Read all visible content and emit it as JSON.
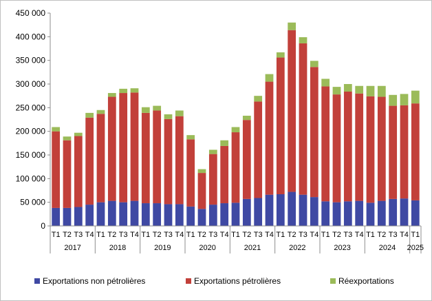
{
  "chart_data": {
    "type": "bar",
    "stacked": true,
    "quarters": [
      "T1",
      "T2",
      "T3",
      "T4",
      "T1",
      "T2",
      "T3",
      "T4",
      "T1",
      "T2",
      "T3",
      "T4",
      "T1",
      "T2",
      "T3",
      "T4",
      "T1",
      "T2",
      "T3",
      "T4",
      "T1",
      "T2",
      "T3",
      "T4",
      "T1",
      "T2",
      "T3",
      "T4",
      "T1",
      "T2",
      "T3",
      "T4",
      "T1"
    ],
    "years": [
      {
        "label": "2017",
        "count": 4
      },
      {
        "label": "2018",
        "count": 4
      },
      {
        "label": "2019",
        "count": 4
      },
      {
        "label": "2020",
        "count": 4
      },
      {
        "label": "2021",
        "count": 4
      },
      {
        "label": "2022",
        "count": 4
      },
      {
        "label": "2023",
        "count": 4
      },
      {
        "label": "2024",
        "count": 4
      },
      {
        "label": "2025",
        "count": 1
      }
    ],
    "series": [
      {
        "name": "Exportations non pétrolières",
        "color": "#3f49a3",
        "values": [
          38000,
          38000,
          40000,
          45000,
          50000,
          53000,
          50000,
          53000,
          48000,
          48000,
          46000,
          46000,
          41000,
          36000,
          45000,
          48000,
          49000,
          57000,
          59000,
          66000,
          67000,
          72000,
          66000,
          61000,
          52000,
          50000,
          52000,
          53000,
          49000,
          53000,
          57000,
          58000,
          54000
        ]
      },
      {
        "name": "Exportations pétrolières",
        "color": "#c2403a",
        "values": [
          162000,
          143000,
          150000,
          184000,
          187000,
          220000,
          231000,
          229000,
          191000,
          196000,
          180000,
          186000,
          142000,
          76000,
          107000,
          121000,
          149000,
          167000,
          204000,
          239000,
          289000,
          342000,
          320000,
          275000,
          243000,
          228000,
          232000,
          227000,
          225000,
          220000,
          197000,
          197000,
          205000
        ]
      },
      {
        "name": "Réexportations",
        "color": "#9bbb59",
        "values": [
          9000,
          8000,
          7000,
          10000,
          8000,
          8000,
          9000,
          9000,
          12000,
          10000,
          10000,
          12000,
          9000,
          8000,
          9000,
          12000,
          11000,
          9000,
          12000,
          16000,
          11000,
          16000,
          13000,
          13000,
          16000,
          16000,
          16000,
          16000,
          22000,
          23000,
          23000,
          24000,
          27000
        ]
      }
    ],
    "y_ticks": [
      "0",
      "50 000",
      "100 000",
      "150 000",
      "200 000",
      "250 000",
      "300 000",
      "350 000",
      "400 000",
      "450 000"
    ],
    "ylim": [
      0,
      450000
    ],
    "title": "",
    "xlabel": "",
    "ylabel": "",
    "legend_position": "bottom",
    "grid": false
  }
}
